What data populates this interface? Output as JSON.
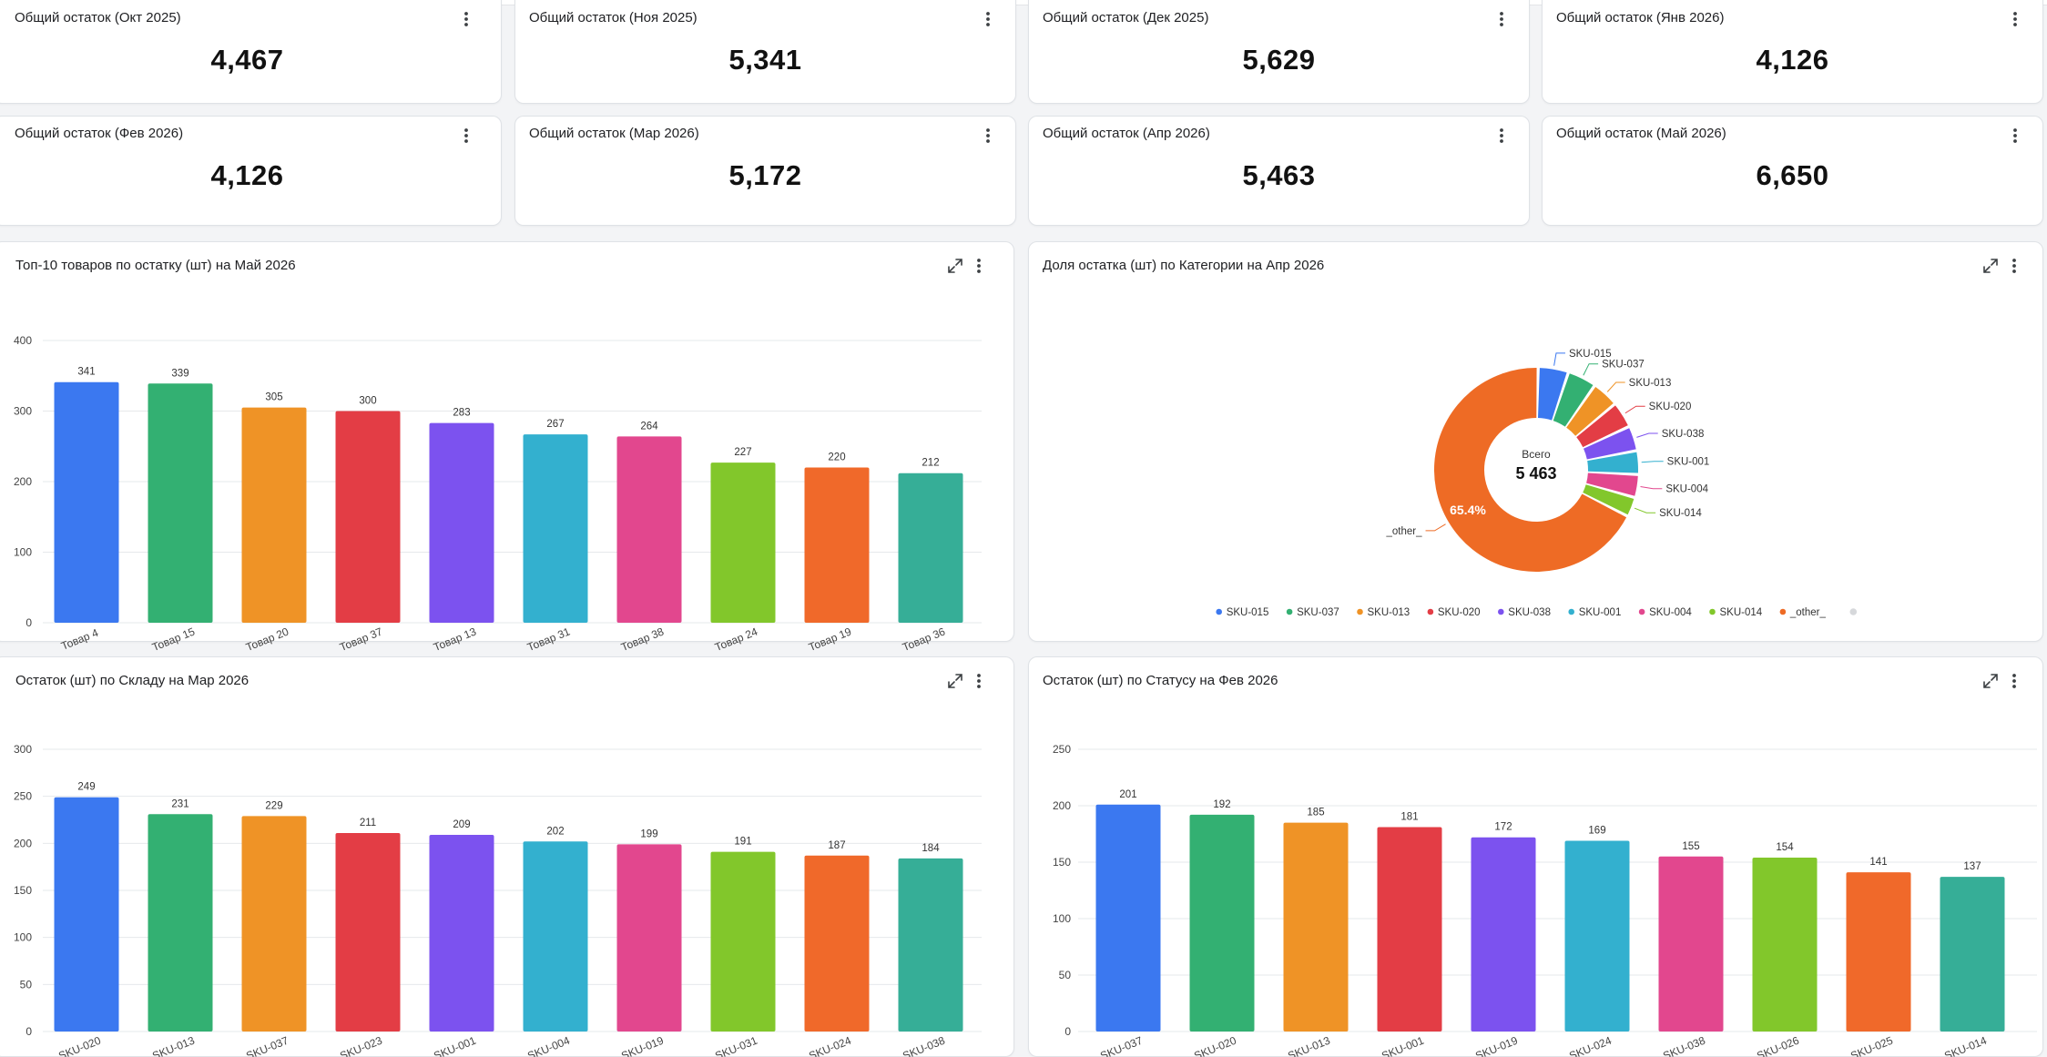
{
  "kpis": [
    {
      "title": "Общий остаток (Окт 2025)",
      "value": "4,467"
    },
    {
      "title": "Общий остаток (Ноя 2025)",
      "value": "5,341"
    },
    {
      "title": "Общий остаток (Дек 2025)",
      "value": "5,629"
    },
    {
      "title": "Общий остаток (Янв 2026)",
      "value": "4,126"
    },
    {
      "title": "Общий остаток (Фев 2026)",
      "value": "4,126"
    },
    {
      "title": "Общий остаток (Мар 2026)",
      "value": "5,172"
    },
    {
      "title": "Общий остаток (Апр 2026)",
      "value": "5,463"
    },
    {
      "title": "Общий остаток (Май 2026)",
      "value": "6,650"
    }
  ],
  "colors": {
    "palette": [
      "#3b78f0",
      "#33b072",
      "#ef9326",
      "#e33d45",
      "#7c52ef",
      "#33b0cf",
      "#e2478e",
      "#82c72b",
      "#f0692a",
      "#36ae97"
    ],
    "other_slice": "#ee6b25",
    "legend_extra": "#d6d8db"
  },
  "icons": {
    "menu": "more-vertical-icon",
    "expand": "expand-icon"
  },
  "charts": {
    "top10": {
      "title": "Топ-10 товаров по остатку (шт) на Май 2026"
    },
    "share": {
      "title": "Доля остатка (шт) по Категории на Апр 2026",
      "center_label": "Всего",
      "center_value": "5 463"
    },
    "warehouse": {
      "title": "Остаток (шт) по Складу на Мар 2026"
    },
    "status": {
      "title": "Остаток (шт) по Статусу на Фев 2026"
    }
  },
  "chart_data": [
    {
      "type": "bar",
      "title": "Топ-10 товаров по остатку (шт) на Май 2026",
      "categories": [
        "Товар 4",
        "Товар 15",
        "Товар 20",
        "Товар 37",
        "Товар 13",
        "Товар 31",
        "Товар 38",
        "Товар 24",
        "Товар 19",
        "Товар 36"
      ],
      "values": [
        341,
        339,
        305,
        300,
        283,
        267,
        264,
        227,
        220,
        212
      ],
      "ylim": [
        0,
        400
      ],
      "yticks": [
        0,
        100,
        200,
        300,
        400
      ],
      "grid": true
    },
    {
      "type": "pie",
      "title": "Доля остатка (шт) по Категории на Апр 2026",
      "categories": [
        "SKU-015",
        "SKU-037",
        "SKU-013",
        "SKU-020",
        "SKU-038",
        "SKU-001",
        "SKU-004",
        "SKU-014",
        "_other_"
      ],
      "values": [
        4.6,
        4.4,
        4.1,
        4.0,
        3.8,
        3.6,
        3.5,
        3.0,
        65.4
      ],
      "slice_label": "65.4%",
      "legend_position": "bottom"
    },
    {
      "type": "bar",
      "title": "Остаток (шт) по Складу на Мар 2026",
      "categories": [
        "SKU-020",
        "SKU-013",
        "SKU-037",
        "SKU-023",
        "SKU-001",
        "SKU-004",
        "SKU-019",
        "SKU-031",
        "SKU-024",
        "SKU-038"
      ],
      "values": [
        249,
        231,
        229,
        211,
        209,
        202,
        199,
        191,
        187,
        184
      ],
      "ylim": [
        0,
        300
      ],
      "yticks": [
        0,
        50,
        100,
        150,
        200,
        250,
        300
      ],
      "grid": true
    },
    {
      "type": "bar",
      "title": "Остаток (шт) по Статусу на Фев 2026",
      "categories": [
        "SKU-037",
        "SKU-020",
        "SKU-013",
        "SKU-001",
        "SKU-019",
        "SKU-024",
        "SKU-038",
        "SKU-026",
        "SKU-025",
        "SKU-014"
      ],
      "values": [
        201,
        192,
        185,
        181,
        172,
        169,
        155,
        154,
        141,
        137
      ],
      "ylim": [
        0,
        250
      ],
      "yticks": [
        0,
        50,
        100,
        150,
        200,
        250
      ],
      "grid": true
    }
  ]
}
